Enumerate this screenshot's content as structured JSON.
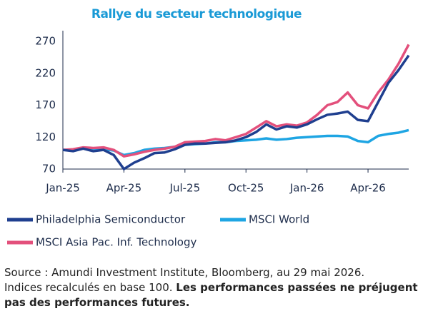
{
  "chart_data": {
    "type": "line",
    "title": "Rallye du secteur technologique",
    "categories": [
      "Jan-25",
      null,
      null,
      null,
      null,
      null,
      "Apr-25",
      null,
      null,
      null,
      null,
      null,
      "Jul-25",
      null,
      null,
      null,
      null,
      null,
      "Oct-25",
      null,
      null,
      null,
      null,
      null,
      "Jan-26",
      null,
      null,
      null,
      null,
      null,
      "Apr-26",
      null,
      null,
      null,
      null
    ],
    "series": [
      {
        "name": "Philadelphia Semiconductor",
        "color": "#1f3f8f",
        "values": [
          100,
          98,
          102,
          98,
          100,
          92,
          70,
          80,
          87,
          95,
          96,
          101,
          108,
          110,
          110,
          111,
          112,
          115,
          120,
          128,
          140,
          132,
          137,
          135,
          140,
          148,
          155,
          157,
          160,
          147,
          145,
          175,
          205,
          225,
          248
        ]
      },
      {
        "name": "MSCI World",
        "color": "#1ea5e3",
        "values": [
          100,
          99,
          103,
          102,
          101,
          99,
          92,
          95,
          100,
          102,
          103,
          105,
          108,
          109,
          110,
          112,
          112,
          114,
          115,
          116,
          118,
          116,
          117,
          119,
          120,
          121,
          122,
          122,
          121,
          114,
          112,
          122,
          125,
          127,
          131
        ]
      },
      {
        "name": "MSCI Asia Pac. Inf. Technology",
        "color": "#e3507c",
        "values": [
          100,
          101,
          104,
          103,
          104,
          100,
          90,
          93,
          97,
          100,
          102,
          105,
          112,
          113,
          114,
          117,
          115,
          120,
          125,
          135,
          145,
          137,
          140,
          138,
          143,
          155,
          170,
          175,
          190,
          170,
          165,
          190,
          210,
          235,
          265
        ]
      }
    ],
    "ylim": [
      70,
      270
    ],
    "yticks": [
      70,
      120,
      170,
      220,
      270
    ],
    "source": [
      "Source : Amundi Investment Institute, Bloomberg, au 29 mai 2026.",
      "Indices recalculés en base 100.",
      "Les performances passées ne préjugent pas des performances futures."
    ]
  }
}
